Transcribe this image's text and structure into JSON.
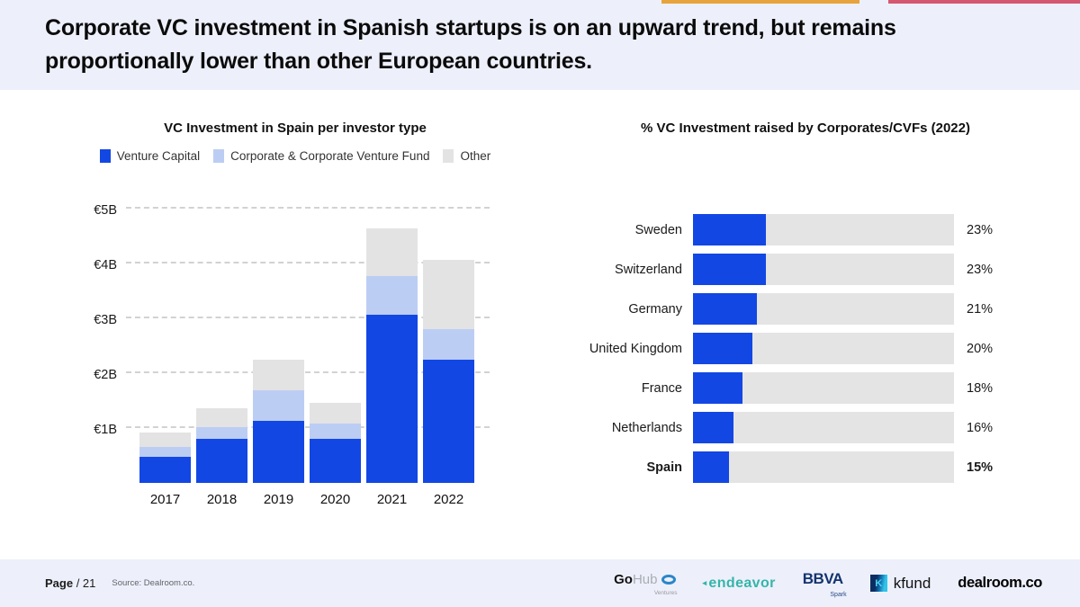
{
  "accent_bars": {
    "yellow": "#e7a33c",
    "red": "#d4586f"
  },
  "header": {
    "title_line1": "Corporate VC investment in Spanish startups is on an upward trend, but remains",
    "title_line2": "proportionally lower than other European countries."
  },
  "chart_data": [
    {
      "type": "bar",
      "stacked": true,
      "title": "VC Investment in Spain per investor type",
      "categories": [
        "2017",
        "2018",
        "2019",
        "2020",
        "2021",
        "2022"
      ],
      "series": [
        {
          "name": "Venture Capital",
          "color": "#1347e4",
          "values": [
            0.48,
            0.8,
            1.13,
            0.8,
            3.07,
            2.25
          ]
        },
        {
          "name": "Corporate & Corporate Venture Fund",
          "color": "#bccdf4",
          "values": [
            0.18,
            0.21,
            0.56,
            0.28,
            0.71,
            0.56
          ]
        },
        {
          "name": "Other",
          "color": "#e3e3e4",
          "values": [
            0.26,
            0.35,
            0.56,
            0.37,
            0.87,
            1.27
          ]
        }
      ],
      "y_ticks": [
        "€1B",
        "€2B",
        "€3B",
        "€4B",
        "€5B"
      ],
      "ylim": [
        0,
        5.2
      ],
      "unit": "€B",
      "grid": "horizontal-dashed",
      "legend_position": "top"
    },
    {
      "type": "bar",
      "orientation": "horizontal",
      "title": "% VC Investment raised by Corporates/CVFs (2022)",
      "categories": [
        "Sweden",
        "Switzerland",
        "Germany",
        "United Kingdom",
        "France",
        "Netherlands",
        "Spain"
      ],
      "values": [
        23,
        23,
        21,
        20,
        18,
        16,
        15
      ],
      "value_labels": [
        "23%",
        "23%",
        "21%",
        "20%",
        "18%",
        "16%",
        "15%"
      ],
      "highlight_category": "Spain",
      "bar_color": "#1347e4",
      "track_color": "#e4e4e4",
      "legend_position": "none",
      "grid": "off"
    }
  ],
  "footer": {
    "page_label": "Page",
    "page_value": "/ 21",
    "source": "Source: Dealroom.co.",
    "logos": {
      "gohub": {
        "text1": "Go",
        "text2": "Hub",
        "sub": "Ventures"
      },
      "endeavor": {
        "text": "endeavor"
      },
      "bbva": {
        "text": "BBVA",
        "sub": "Spark"
      },
      "kfund": {
        "text": "kfund"
      },
      "dealroom": {
        "text": "dealroom.co"
      }
    }
  }
}
